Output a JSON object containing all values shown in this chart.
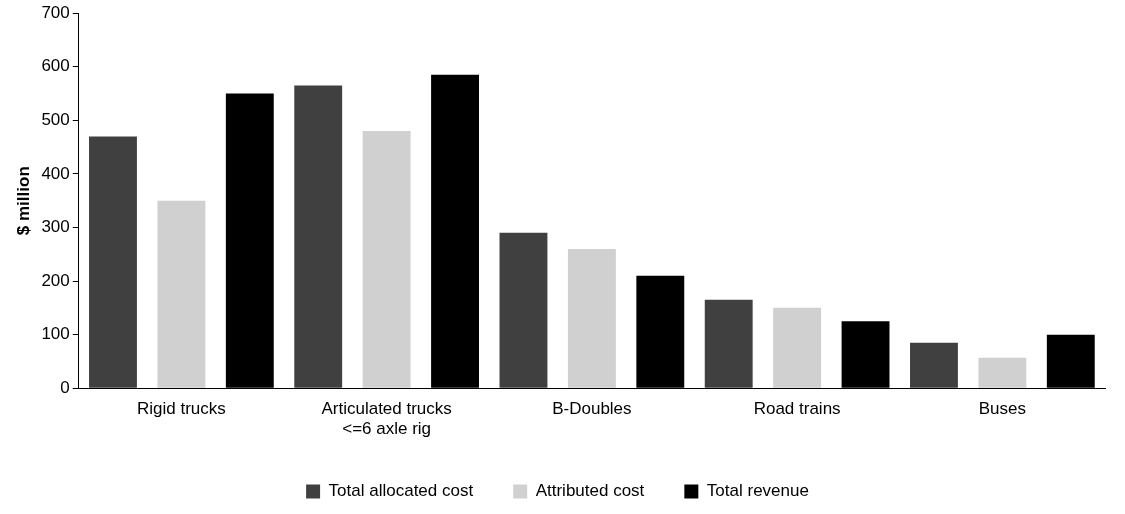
{
  "chart_data": {
    "type": "bar",
    "ylabel": "$ million",
    "categories": [
      "Rigid trucks",
      "Articulated trucks\n<=6 axle rig",
      "B-Doubles",
      "Road trains",
      "Buses"
    ],
    "series": [
      {
        "name": "Total allocated cost",
        "color": "#404040",
        "values": [
          470,
          565,
          290,
          165,
          85
        ]
      },
      {
        "name": "Attributed cost",
        "color": "#d0d0d0",
        "values": [
          350,
          480,
          260,
          150,
          57
        ]
      },
      {
        "name": "Total revenue",
        "color": "#000000",
        "values": [
          550,
          585,
          210,
          125,
          100
        ]
      }
    ],
    "ylim": [
      0,
      700
    ],
    "yticks": [
      0,
      100,
      200,
      300,
      400,
      500,
      600,
      700
    ],
    "grid": false,
    "legend": "bottom"
  }
}
